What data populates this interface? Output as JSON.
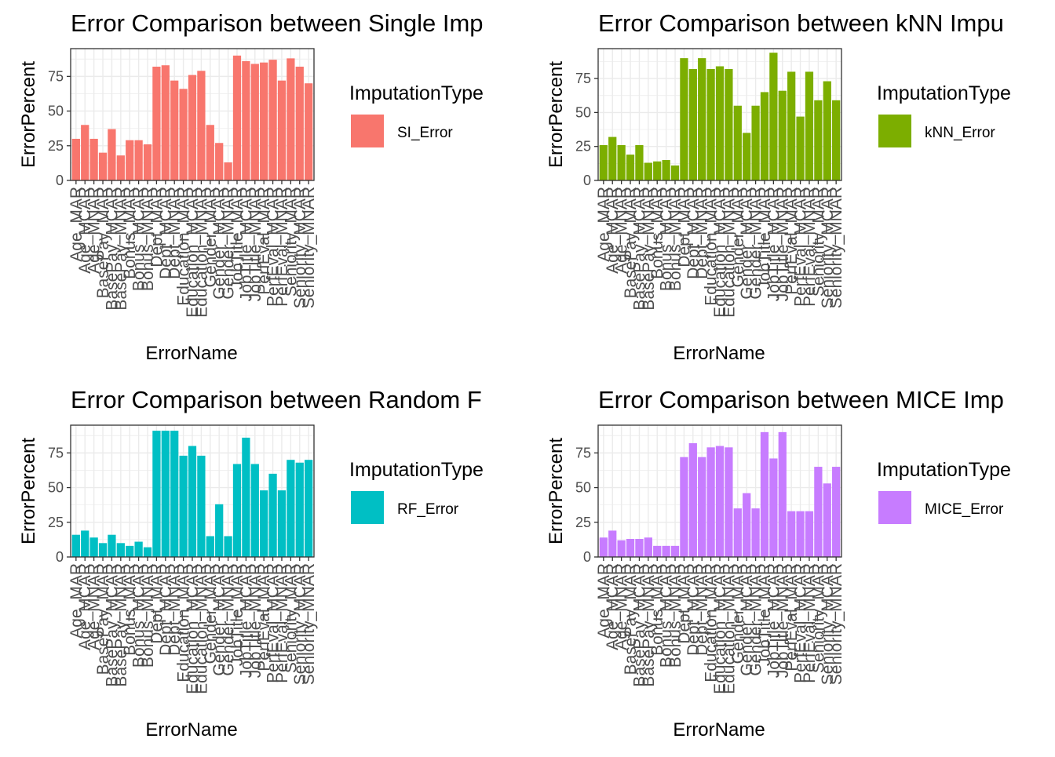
{
  "chart_data": [
    {
      "type": "bar",
      "title": "Error Comparison between Single Imp",
      "xlabel": "ErrorName",
      "ylabel": "ErrorPercent",
      "ylim": [
        0,
        95
      ],
      "yticks": [
        0,
        25,
        50,
        75
      ],
      "grid": true,
      "legend_position": "right",
      "legend_title": "ImputationType",
      "color": "#F8766D",
      "categories": [
        "Age_MAR",
        "Age_MCAR",
        "Age_MNAR",
        "BasePay_MAR",
        "BasePay_MCAR",
        "BasePay_MNAR",
        "Bonus_MAR",
        "Bonus_MCAR",
        "Bonus_MNAR",
        "Dept_MAR",
        "Dept_MCAR",
        "Dept_MNAR",
        "Education_MAR",
        "Education_MCAR",
        "Education_MNAR",
        "Gender_MAR",
        "Gender_MCAR",
        "Gender_MNAR",
        "JobTitle_MAR",
        "JobTitle_MCAR",
        "JobTitle_MNAR",
        "PerfEval_MAR",
        "PerfEval_MCAR",
        "PerfEval_MNAR",
        "Seniority_MAR",
        "Seniority_MCAR",
        "Seniority_MNAR"
      ],
      "tick_labels": [
        "Age_MAR",
        "Age_MCAR",
        "Age_MNAR",
        "BasePay_MAR",
        "BasePay_MCAR",
        "BasePay_MNAR",
        "Bonus_MAR",
        "Bonus_MCAR",
        "Bonus_MNAR",
        "Dept_MAR",
        "Dept_MCAR",
        "Dept_MNAR",
        "Education_MAR",
        "Education_MCAR",
        "Education_MNAR",
        "Gender_MAR",
        "Gender_MCAR",
        "Gender_MNAR",
        "JobTitle_MAR",
        "JobTitle_MCAR",
        "JobTitle_MNAR",
        "PerfEval_MAR",
        "PerfEval_MCAR",
        "PerfEval_MNAR",
        "Seniority_MAR",
        "Seniority_MCAR",
        "Seniority_MNAR"
      ],
      "series": [
        {
          "name": "SI_Error",
          "values": [
            30,
            40,
            30,
            20,
            37,
            18,
            29,
            29,
            26,
            82,
            83,
            72,
            66,
            76,
            79,
            40,
            27,
            13,
            90,
            86,
            84,
            85,
            87,
            72,
            88,
            82,
            70
          ]
        }
      ]
    },
    {
      "type": "bar",
      "title": "Error Comparison between kNN Impu",
      "xlabel": "ErrorName",
      "ylabel": "ErrorPercent",
      "ylim": [
        0,
        97
      ],
      "yticks": [
        0,
        25,
        50,
        75
      ],
      "grid": true,
      "legend_position": "right",
      "legend_title": "ImputationType",
      "color": "#7CAE00",
      "categories": [
        "Age_MAR",
        "Age_MCAR",
        "Age_MNAR",
        "BasePay_MAR",
        "BasePay_MCAR",
        "BasePay_MNAR",
        "Bonus_MAR",
        "Bonus_MCAR",
        "Bonus_MNAR",
        "Dept_MAR",
        "Dept_MCAR",
        "Dept_MNAR",
        "Education_MAR",
        "Education_MCAR",
        "Education_MNAR",
        "Gender_MAR",
        "Gender_MCAR",
        "Gender_MNAR",
        "JobTitle_MAR",
        "JobTitle_MCAR",
        "JobTitle_MNAR",
        "PerfEval_MAR",
        "PerfEval_MCAR",
        "PerfEval_MNAR",
        "Seniority_MAR",
        "Seniority_MCAR",
        "Seniority_MNAR"
      ],
      "tick_labels": [
        "Age_MAR",
        "Age_MCAR",
        "Age_MNAR",
        "BasePay_MAR",
        "BasePay_MCAR",
        "BasePay_MNAR",
        "Bonus_MAR",
        "Bonus_MCAR",
        "Bonus_MNAR",
        "Dept_MAR",
        "Dept_MCAR",
        "Dept_MNAR",
        "Education_MAR",
        "Education_MCAR",
        "Education_MNAR",
        "Gender_MAR",
        "Gender_MCAR",
        "Gender_MNAR",
        "JobTitle_MAR",
        "JobTitle_MCAR",
        "JobTitle_MNAR",
        "PerfEval_MAR",
        "PerfEval_MCAR",
        "PerfEval_MNAR",
        "Seniority_MAR",
        "Seniority_MCAR",
        "Seniority_MNAR"
      ],
      "series": [
        {
          "name": "kNN_Error",
          "values": [
            26,
            32,
            26,
            19,
            26,
            13,
            14,
            15,
            11,
            90,
            82,
            90,
            82,
            84,
            82,
            55,
            35,
            55,
            65,
            94,
            66,
            80,
            47,
            80,
            59,
            73,
            59
          ]
        }
      ]
    },
    {
      "type": "bar",
      "title": "Error Comparison between Random F",
      "xlabel": "ErrorName",
      "ylabel": "ErrorPercent",
      "ylim": [
        0,
        95
      ],
      "yticks": [
        0,
        25,
        50,
        75
      ],
      "grid": true,
      "legend_position": "right",
      "legend_title": "ImputationType",
      "color": "#00BFC4",
      "categories": [
        "Age_MAR",
        "Age_MCAR",
        "Age_MNAR",
        "BasePay_MAR",
        "BasePay_MCAR",
        "BasePay_MNAR",
        "Bonus_MAR",
        "Bonus_MCAR",
        "Bonus_MNAR",
        "Dept_MAR",
        "Dept_MCAR",
        "Dept_MNAR",
        "Education_MAR",
        "Education_MCAR",
        "Education_MNAR",
        "Gender_MAR",
        "Gender_MCAR",
        "Gender_MNAR",
        "JobTitle_MAR",
        "JobTitle_MCAR",
        "JobTitle_MNAR",
        "PerfEval_MAR",
        "PerfEval_MCAR",
        "PerfEval_MNAR",
        "Seniority_MAR",
        "Seniority_MCAR",
        "Seniority_MNAR"
      ],
      "tick_labels": [
        "Age_MAR",
        "Age_MCAR",
        "Age_MNAR",
        "BasePay_MAR",
        "BasePay_MCAR",
        "BasePay_MNAR",
        "Bonus_MAR",
        "Bonus_MCAR",
        "Bonus_MNAR",
        "Dept_MAR",
        "Dept_MCAR",
        "Dept_MNAR",
        "Education_MAR",
        "Education_MCAR",
        "Education_MNAR",
        "Gender_MAR",
        "Gender_MCAR",
        "Gender_MNAR",
        "JobTitle_MAR",
        "JobTitle_MCAR",
        "JobTitle_MNAR",
        "PerfEval_MAR",
        "PerfEval_MCAR",
        "PerfEval_MNAR",
        "Seniority_MAR",
        "Seniority_MCAR",
        "Seniority_MNAR"
      ],
      "series": [
        {
          "name": "RF_Error",
          "values": [
            16,
            19,
            14,
            10,
            16,
            10,
            8,
            11,
            7,
            91,
            91,
            91,
            73,
            80,
            73,
            15,
            38,
            15,
            67,
            86,
            67,
            48,
            60,
            48,
            70,
            68,
            70
          ]
        }
      ]
    },
    {
      "type": "bar",
      "title": "Error Comparison between MICE Imp",
      "xlabel": "ErrorName",
      "ylabel": "ErrorPercent",
      "ylim": [
        0,
        95
      ],
      "yticks": [
        0,
        25,
        50,
        75
      ],
      "grid": true,
      "legend_position": "right",
      "legend_title": "ImputationType",
      "color": "#C77CFF",
      "categories": [
        "Age_MAR",
        "Age_MCAR",
        "Age_MNAR",
        "BasePay_MAR",
        "BasePay_MCAR",
        "BasePay_MNAR",
        "Bonus_MAR",
        "Bonus_MCAR",
        "Bonus_MNAR",
        "Dept_MAR",
        "Dept_MCAR",
        "Dept_MNAR",
        "Education_MAR",
        "Education_MCAR",
        "Education_MNAR",
        "Gender_MAR",
        "Gender_MCAR",
        "Gender_MNAR",
        "JobTitle_MAR",
        "JobTitle_MCAR",
        "JobTitle_MNAR",
        "PerfEval_MAR",
        "PerfEval_MCAR",
        "PerfEval_MNAR",
        "Seniority_MAR",
        "Seniority_MCAR",
        "Seniority_MNAR"
      ],
      "tick_labels": [
        "Age_MAR",
        "Age_MCAR",
        "Age_MNAR",
        "BasePay_MAR",
        "BasePay_MCAR",
        "BasePay_MNAR",
        "Bonus_MAR",
        "Bonus_MCAR",
        "Bonus_MNAR",
        "Dept_MAR",
        "Dept_MCAR",
        "Dept_MNAR",
        "Education_MAR",
        "Education_MCAR",
        "Education_MNAR",
        "Gender_MAR",
        "Gender_MCAR",
        "Gender_MNAR",
        "JobTitle_MAR",
        "JobTitle_MCAR",
        "JobTitle_MNAR",
        "PerfEval_MAR",
        "PerfEval_MCAR",
        "PerfEval_MNAR",
        "Seniority_MAR",
        "Seniority_MCAR",
        "Seniority_MNAR"
      ],
      "series": [
        {
          "name": "MICE_Error",
          "values": [
            14,
            19,
            12,
            13,
            13,
            14,
            8,
            8,
            8,
            72,
            82,
            72,
            79,
            80,
            79,
            35,
            46,
            35,
            90,
            71,
            90,
            33,
            33,
            33,
            65,
            53,
            65
          ]
        }
      ]
    }
  ]
}
